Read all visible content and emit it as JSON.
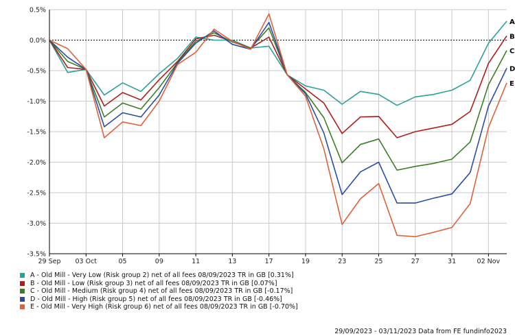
{
  "chart_data": {
    "type": "line",
    "ylim": [
      -3.5,
      0.5
    ],
    "y_ticks": [
      0.5,
      0,
      -0.5,
      -1,
      -1.5,
      -2,
      -2.5,
      -3,
      -3.5
    ],
    "y_tick_labels": [
      "0.5%",
      "0.0%",
      "-0.5%",
      "-1.0%",
      "-1.5%",
      "-2.0%",
      "-2.5%",
      "-3.0%",
      "-3.5%"
    ],
    "x_tick_labels": [
      "29 Sep",
      "03 Oct",
      "05",
      "09",
      "11",
      "13",
      "17",
      "19",
      "23",
      "25",
      "27",
      "31",
      "02 Nov"
    ],
    "x": [
      "2023-09-29",
      "2023-10-02",
      "2023-10-03",
      "2023-10-04",
      "2023-10-05",
      "2023-10-06",
      "2023-10-09",
      "2023-10-10",
      "2023-10-11",
      "2023-10-12",
      "2023-10-13",
      "2023-10-16",
      "2023-10-17",
      "2023-10-18",
      "2023-10-19",
      "2023-10-20",
      "2023-10-23",
      "2023-10-24",
      "2023-10-25",
      "2023-10-26",
      "2023-10-27",
      "2023-10-30",
      "2023-10-31",
      "2023-11-01",
      "2023-11-02",
      "2023-11-03"
    ],
    "series": [
      {
        "label": "A",
        "name": "A - Old Mill - Very Low (Risk group 2) net of all fees 08/09/2023 TR in GB [0.31%]",
        "color": "#2aa198",
        "values": [
          0.0,
          -0.53,
          -0.48,
          -0.9,
          -0.7,
          -0.84,
          -0.55,
          -0.3,
          0.05,
          0.0,
          0.0,
          -0.13,
          -0.1,
          -0.57,
          -0.75,
          -0.82,
          -1.05,
          -0.84,
          -0.89,
          -1.07,
          -0.93,
          -0.89,
          -0.82,
          -0.66,
          -0.05,
          0.31
        ]
      },
      {
        "label": "B",
        "name": "B - Old Mill - Low (Risk group 3) net of all fees 08/09/2023 TR in GB [0.07%]",
        "color": "#b01c1c",
        "values": [
          0.0,
          -0.45,
          -0.48,
          -1.08,
          -0.86,
          -0.98,
          -0.65,
          -0.35,
          0.02,
          0.08,
          -0.02,
          -0.13,
          0.05,
          -0.57,
          -0.8,
          -1.03,
          -1.53,
          -1.26,
          -1.25,
          -1.6,
          -1.5,
          -1.44,
          -1.38,
          -1.17,
          -0.38,
          0.07
        ]
      },
      {
        "label": "C",
        "name": "C - Old Mill - Medium (Risk group 4) net of all fees 08/09/2023 TR in GB [-0.17%]",
        "color": "#3c7d22",
        "values": [
          0.0,
          -0.35,
          -0.48,
          -1.26,
          -1.03,
          -1.13,
          -0.78,
          -0.37,
          -0.02,
          0.12,
          -0.03,
          -0.13,
          0.2,
          -0.57,
          -0.86,
          -1.27,
          -2.01,
          -1.71,
          -1.62,
          -2.13,
          -2.07,
          -2.02,
          -1.95,
          -1.67,
          -0.73,
          -0.17
        ]
      },
      {
        "label": "D",
        "name": "D - Old Mill - High (Risk group 5) net of all fees 08/09/2023 TR in GB [-0.46%]",
        "color": "#2b4ba8",
        "values": [
          0.0,
          -0.28,
          -0.48,
          -1.42,
          -1.19,
          -1.26,
          -0.9,
          -0.38,
          -0.05,
          0.15,
          -0.07,
          -0.15,
          0.29,
          -0.57,
          -0.88,
          -1.52,
          -2.53,
          -2.16,
          -2.0,
          -2.67,
          -2.67,
          -2.59,
          -2.52,
          -2.17,
          -1.08,
          -0.46
        ]
      },
      {
        "label": "E",
        "name": "E - Old Mill - Very High (Risk group 6) net of all fees 08/09/2023 TR in GB [-0.70%]",
        "color": "#e0603a",
        "values": [
          0.0,
          -0.14,
          -0.48,
          -1.6,
          -1.34,
          -1.4,
          -1.0,
          -0.4,
          -0.2,
          0.18,
          -0.02,
          -0.15,
          0.43,
          -0.57,
          -0.92,
          -1.78,
          -3.02,
          -2.6,
          -2.35,
          -3.2,
          -3.22,
          -3.15,
          -3.07,
          -2.68,
          -1.43,
          -0.7
        ]
      }
    ]
  },
  "footer": {
    "text": "29/09/2023 - 03/11/2023 Data from FE fundinfo2023"
  }
}
